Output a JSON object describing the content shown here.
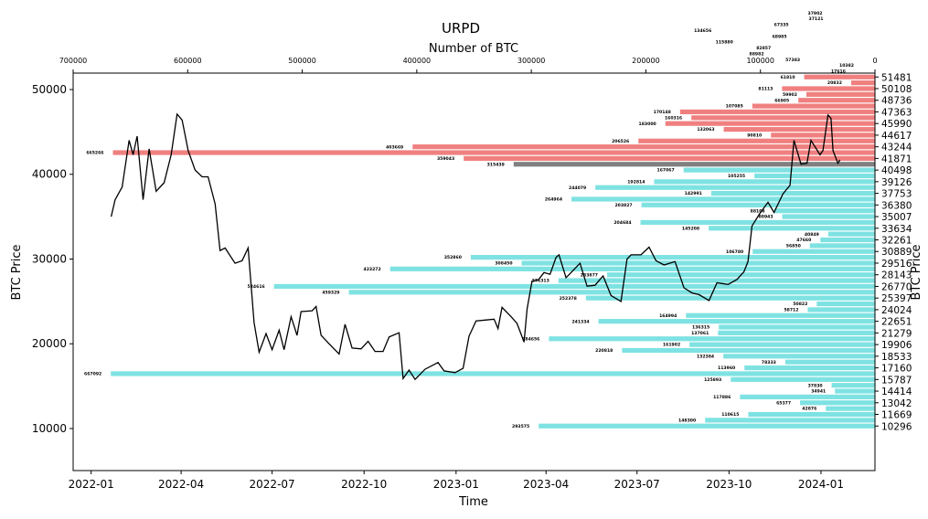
{
  "chart_data": {
    "type": "bar",
    "title": "URPD",
    "top_xlabel": "Number of BTC",
    "xlabel": "Time",
    "ylabel_left": "BTC Price",
    "ylabel_right": "BTC Price",
    "ylim": [
      5040,
      51940
    ],
    "top_xlim": [
      700000,
      0
    ],
    "time_xlim": [
      "2021-12-14",
      "2024-02-24"
    ],
    "grid": false,
    "colors": {
      "above_price": "#f08080",
      "at_price": "#808080",
      "below_price": "#7fe2e2",
      "price_line": "#000000"
    },
    "left_ticks": [
      10000,
      20000,
      30000,
      40000,
      50000
    ],
    "top_ticks": [
      700000,
      600000,
      500000,
      400000,
      300000,
      200000,
      100000,
      0
    ],
    "bottom_ticks": [
      "2022-01",
      "2022-04",
      "2022-07",
      "2022-10",
      "2023-01",
      "2023-04",
      "2023-07",
      "2023-10",
      "2024-01"
    ],
    "right_ticks": [
      10296,
      11669,
      13042,
      14414,
      15787,
      17160,
      18533,
      19906,
      21279,
      22651,
      24024,
      25397,
      26770,
      28143,
      29516,
      30889,
      32261,
      33634,
      35007,
      36380,
      37753,
      39126,
      40498,
      41871,
      43244,
      44617,
      45990,
      47363,
      48736,
      50108,
      51481
    ],
    "bars": [
      {
        "price": 10296,
        "btc": 293575,
        "zone": "below"
      },
      {
        "price": 10982,
        "btc": 148300,
        "zone": "below"
      },
      {
        "price": 11669,
        "btc": 110615,
        "zone": "below"
      },
      {
        "price": 12356,
        "btc": 42876,
        "zone": "below"
      },
      {
        "price": 13042,
        "btc": 65377,
        "zone": "below"
      },
      {
        "price": 13729,
        "btc": 117886,
        "zone": "below"
      },
      {
        "price": 14414,
        "btc": 34941,
        "zone": "below"
      },
      {
        "price": 15101,
        "btc": 37830,
        "zone": "below"
      },
      {
        "price": 15787,
        "btc": 125893,
        "zone": "below"
      },
      {
        "price": 16474,
        "btc": 667092,
        "zone": "below"
      },
      {
        "price": 17160,
        "btc": 113960,
        "zone": "below"
      },
      {
        "price": 17847,
        "btc": 78333,
        "zone": "below"
      },
      {
        "price": 18533,
        "btc": 132384,
        "zone": "below"
      },
      {
        "price": 19220,
        "btc": 220818,
        "zone": "below"
      },
      {
        "price": 19906,
        "btc": 161902,
        "zone": "below"
      },
      {
        "price": 20593,
        "btc": 284656,
        "zone": "below"
      },
      {
        "price": 21279,
        "btc": 137061,
        "zone": "below"
      },
      {
        "price": 21966,
        "btc": 136315,
        "zone": "below"
      },
      {
        "price": 22651,
        "btc": 241334,
        "zone": "below"
      },
      {
        "price": 23338,
        "btc": 164994,
        "zone": "below"
      },
      {
        "price": 24024,
        "btc": 58712,
        "zone": "below"
      },
      {
        "price": 24711,
        "btc": 50822,
        "zone": "below"
      },
      {
        "price": 25397,
        "btc": 252378,
        "zone": "below"
      },
      {
        "price": 26084,
        "btc": 459329,
        "zone": "below"
      },
      {
        "price": 26770,
        "btc": 524616,
        "zone": "below"
      },
      {
        "price": 27457,
        "btc": 276313,
        "zone": "below"
      },
      {
        "price": 28143,
        "btc": 233877,
        "zone": "below"
      },
      {
        "price": 28830,
        "btc": 423272,
        "zone": "below"
      },
      {
        "price": 29516,
        "btc": 308450,
        "zone": "below"
      },
      {
        "price": 30203,
        "btc": 352860,
        "zone": "below"
      },
      {
        "price": 30889,
        "btc": 106780,
        "zone": "below"
      },
      {
        "price": 31576,
        "btc": 56850,
        "zone": "below"
      },
      {
        "price": 32261,
        "btc": 47660,
        "zone": "below"
      },
      {
        "price": 32948,
        "btc": 40849,
        "zone": "below"
      },
      {
        "price": 33634,
        "btc": 145208,
        "zone": "below"
      },
      {
        "price": 34321,
        "btc": 204684,
        "zone": "below"
      },
      {
        "price": 35007,
        "btc": 80943,
        "zone": "below"
      },
      {
        "price": 35694,
        "btc": 88108,
        "zone": "below"
      },
      {
        "price": 36380,
        "btc": 203827,
        "zone": "below"
      },
      {
        "price": 37067,
        "btc": 264964,
        "zone": "below"
      },
      {
        "price": 37753,
        "btc": 142991,
        "zone": "below"
      },
      {
        "price": 38440,
        "btc": 244079,
        "zone": "below"
      },
      {
        "price": 39126,
        "btc": 192814,
        "zone": "below"
      },
      {
        "price": 39813,
        "btc": 105255,
        "zone": "below"
      },
      {
        "price": 40498,
        "btc": 167067,
        "zone": "below"
      },
      {
        "price": 41185,
        "btc": 315439,
        "zone": "at"
      },
      {
        "price": 41871,
        "btc": 359043,
        "zone": "above"
      },
      {
        "price": 42558,
        "btc": 665266,
        "zone": "above"
      },
      {
        "price": 43244,
        "btc": 403669,
        "zone": "above"
      },
      {
        "price": 43931,
        "btc": 206526,
        "zone": "above"
      },
      {
        "price": 44617,
        "btc": 90810,
        "zone": "above"
      },
      {
        "price": 45304,
        "btc": 132063,
        "zone": "above"
      },
      {
        "price": 45990,
        "btc": 183000,
        "zone": "above"
      },
      {
        "price": 46677,
        "btc": 160316,
        "zone": "above"
      },
      {
        "price": 47363,
        "btc": 170148,
        "zone": "above"
      },
      {
        "price": 48050,
        "btc": 107085,
        "zone": "above"
      },
      {
        "price": 48736,
        "btc": 66905,
        "zone": "above"
      },
      {
        "price": 49423,
        "btc": 59902,
        "zone": "above"
      },
      {
        "price": 50108,
        "btc": 81113,
        "zone": "above"
      },
      {
        "price": 50795,
        "btc": 20832,
        "zone": "above"
      },
      {
        "price": 51481,
        "btc": 61810,
        "zone": "above"
      },
      {
        "price": 52168,
        "btc": 17616,
        "zone": "above"
      },
      {
        "price": 52854,
        "btc": 10382,
        "zone": "above"
      },
      {
        "price": 53541,
        "btc": 57383,
        "zone": "above"
      },
      {
        "price": 54227,
        "btc": 88982,
        "zone": "above"
      },
      {
        "price": 54914,
        "btc": 82857,
        "zone": "above"
      },
      {
        "price": 55600,
        "btc": 115880,
        "zone": "above"
      },
      {
        "price": 56287,
        "btc": 68985,
        "zone": "above"
      },
      {
        "price": 56973,
        "btc": 134656,
        "zone": "above"
      },
      {
        "price": 57660,
        "btc": 67335,
        "zone": "above"
      },
      {
        "price": 58346,
        "btc": 37121,
        "zone": "above"
      },
      {
        "price": 59033,
        "btc": 37902,
        "zone": "above"
      }
    ],
    "price_series": {
      "x": [
        "2022-01-21",
        "2022-01-25",
        "2022-02-01",
        "2022-02-08",
        "2022-02-12",
        "2022-02-16",
        "2022-02-22",
        "2022-02-28",
        "2022-03-07",
        "2022-03-15",
        "2022-03-22",
        "2022-03-28",
        "2022-04-02",
        "2022-04-08",
        "2022-04-15",
        "2022-04-22",
        "2022-04-28",
        "2022-05-05",
        "2022-05-10",
        "2022-05-15",
        "2022-05-25",
        "2022-06-01",
        "2022-06-07",
        "2022-06-13",
        "2022-06-18",
        "2022-06-25",
        "2022-07-01",
        "2022-07-08",
        "2022-07-13",
        "2022-07-20",
        "2022-07-26",
        "2022-07-30",
        "2022-08-10",
        "2022-08-14",
        "2022-08-19",
        "2022-08-27",
        "2022-09-06",
        "2022-09-12",
        "2022-09-19",
        "2022-09-28",
        "2022-10-05",
        "2022-10-12",
        "2022-10-20",
        "2022-10-26",
        "2022-11-05",
        "2022-11-09",
        "2022-11-15",
        "2022-11-21",
        "2022-12-01",
        "2022-12-14",
        "2022-12-20",
        "2022-12-31",
        "2023-01-08",
        "2023-01-14",
        "2023-01-21",
        "2023-01-30",
        "2023-02-08",
        "2023-02-12",
        "2023-02-16",
        "2023-02-25",
        "2023-03-03",
        "2023-03-10",
        "2023-03-13",
        "2023-03-18",
        "2023-03-24",
        "2023-03-30",
        "2023-04-05",
        "2023-04-11",
        "2023-04-14",
        "2023-04-21",
        "2023-04-26",
        "2023-05-05",
        "2023-05-12",
        "2023-05-20",
        "2023-05-28",
        "2023-06-05",
        "2023-06-15",
        "2023-06-21",
        "2023-06-25",
        "2023-07-05",
        "2023-07-13",
        "2023-07-20",
        "2023-07-28",
        "2023-08-08",
        "2023-08-17",
        "2023-08-25",
        "2023-09-01",
        "2023-09-11",
        "2023-09-19",
        "2023-09-30",
        "2023-10-09",
        "2023-10-16",
        "2023-10-20",
        "2023-10-24",
        "2023-11-01",
        "2023-11-09",
        "2023-11-15",
        "2023-11-24",
        "2023-12-01",
        "2023-12-05",
        "2023-12-12",
        "2023-12-18",
        "2023-12-22",
        "2023-12-31",
        "2024-01-03",
        "2024-01-08",
        "2024-01-11",
        "2024-01-13",
        "2024-01-18",
        "2024-01-20"
      ],
      "y": [
        35000,
        37000,
        38500,
        44000,
        42300,
        44500,
        37000,
        43000,
        38000,
        39000,
        42300,
        47100,
        46400,
        42800,
        40500,
        39700,
        39700,
        36500,
        31000,
        31300,
        29500,
        29800,
        31300,
        22500,
        19000,
        21200,
        19300,
        21600,
        19300,
        23200,
        21000,
        23800,
        23900,
        24400,
        21000,
        20000,
        18800,
        22300,
        19500,
        19400,
        20300,
        19100,
        19100,
        20800,
        21300,
        15900,
        16900,
        15800,
        17000,
        17800,
        16800,
        16600,
        17100,
        20900,
        22700,
        22800,
        22900,
        21800,
        24300,
        23200,
        22400,
        20200,
        24100,
        27400,
        27500,
        28400,
        28200,
        30200,
        30500,
        27800,
        28400,
        29500,
        26800,
        26900,
        28000,
        25700,
        25000,
        30000,
        30500,
        30500,
        31400,
        29800,
        29300,
        29700,
        26600,
        26000,
        25800,
        25100,
        27200,
        27000,
        27600,
        28500,
        29700,
        33900,
        35400,
        36700,
        35500,
        37700,
        38700,
        44000,
        41200,
        41300,
        44000,
        42300,
        42800,
        47000,
        46600,
        42800,
        41300,
        41700
      ]
    }
  }
}
